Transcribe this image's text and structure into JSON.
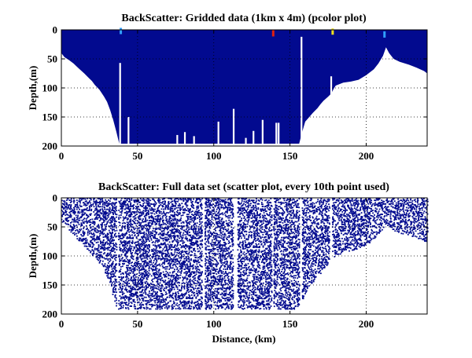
{
  "chart_data": [
    {
      "type": "heatmap",
      "title": "BackScatter: Gridded data (1km x 4m) (pcolor plot)",
      "xlabel": "",
      "ylabel": "Depth,(m)",
      "xlim": [
        0,
        240
      ],
      "ylim": [
        200,
        0
      ],
      "y_reversed": true,
      "xticks": [
        0,
        50,
        100,
        150,
        200
      ],
      "yticks": [
        0,
        50,
        100,
        150,
        200
      ],
      "grid": true,
      "colors": {
        "data": "#020a8f",
        "no_data": "#ffffff",
        "hot": "#e02010",
        "warm": "#f0e020",
        "cool": "#30a0ff"
      },
      "bottom_depth": [
        [
          0,
          40
        ],
        [
          2,
          47
        ],
        [
          5,
          52
        ],
        [
          8,
          58
        ],
        [
          10,
          63
        ],
        [
          12,
          68
        ],
        [
          15,
          75
        ],
        [
          18,
          83
        ],
        [
          20,
          88
        ],
        [
          22,
          95
        ],
        [
          25,
          103
        ],
        [
          28,
          115
        ],
        [
          30,
          124
        ],
        [
          32,
          138
        ],
        [
          34,
          155
        ],
        [
          36,
          175
        ],
        [
          38,
          196
        ],
        [
          156,
          196
        ],
        [
          158,
          176
        ],
        [
          160,
          158
        ],
        [
          162,
          152
        ],
        [
          165,
          143
        ],
        [
          168,
          135
        ],
        [
          170,
          128
        ],
        [
          172,
          122
        ],
        [
          175,
          115
        ],
        [
          177,
          110
        ],
        [
          179,
          100
        ],
        [
          180,
          96
        ],
        [
          185,
          91
        ],
        [
          190,
          89
        ],
        [
          195,
          86
        ],
        [
          200,
          78
        ],
        [
          205,
          68
        ],
        [
          208,
          58
        ],
        [
          211,
          45
        ],
        [
          213,
          30
        ],
        [
          215,
          40
        ],
        [
          218,
          50
        ],
        [
          222,
          55
        ],
        [
          228,
          60
        ],
        [
          233,
          65
        ],
        [
          238,
          71
        ],
        [
          240,
          75
        ]
      ],
      "gaps": [
        {
          "x": 38.5,
          "top": 57,
          "bottom": 196
        },
        {
          "x": 44,
          "top": 150,
          "bottom": 196
        },
        {
          "x": 76,
          "top": 181,
          "bottom": 196
        },
        {
          "x": 81,
          "top": 176,
          "bottom": 196
        },
        {
          "x": 87,
          "top": 183,
          "bottom": 196
        },
        {
          "x": 103,
          "top": 158,
          "bottom": 196
        },
        {
          "x": 113,
          "top": 136,
          "bottom": 196
        },
        {
          "x": 121,
          "top": 186,
          "bottom": 196
        },
        {
          "x": 126,
          "top": 174,
          "bottom": 196
        },
        {
          "x": 132,
          "top": 155,
          "bottom": 196
        },
        {
          "x": 141,
          "top": 160,
          "bottom": 196
        },
        {
          "x": 142.5,
          "top": 160,
          "bottom": 196
        },
        {
          "x": 157.5,
          "top": 12,
          "bottom": 196
        },
        {
          "x": 177,
          "top": 80,
          "bottom": 112
        }
      ],
      "hotspots": [
        {
          "x": 139,
          "y": 6,
          "color": "hot"
        },
        {
          "x": 178,
          "y": 3,
          "color": "warm"
        },
        {
          "x": 39,
          "y": 2,
          "color": "cool"
        },
        {
          "x": 212,
          "y": 8,
          "color": "cool"
        }
      ]
    },
    {
      "type": "scatter",
      "title": "BackScatter: Full data set (scatter plot, every 10th point used)",
      "xlabel": "Distance, (km)",
      "ylabel": "Depth,(m)",
      "xlim": [
        0,
        240
      ],
      "ylim": [
        200,
        0
      ],
      "y_reversed": true,
      "xticks": [
        0,
        50,
        100,
        150,
        200
      ],
      "yticks": [
        0,
        50,
        100,
        150,
        200
      ],
      "grid": true,
      "marker_color": "#020a8f",
      "sampling": "every 10th point",
      "density": 0.33,
      "seed": 7,
      "bottom_depth": [
        [
          0,
          40
        ],
        [
          5,
          55
        ],
        [
          10,
          70
        ],
        [
          15,
          83
        ],
        [
          20,
          97
        ],
        [
          25,
          112
        ],
        [
          30,
          135
        ],
        [
          33,
          160
        ],
        [
          36,
          190
        ],
        [
          156,
          190
        ],
        [
          160,
          162
        ],
        [
          165,
          145
        ],
        [
          170,
          128
        ],
        [
          175,
          112
        ],
        [
          180,
          97
        ],
        [
          190,
          90
        ],
        [
          200,
          80
        ],
        [
          205,
          70
        ],
        [
          210,
          55
        ],
        [
          213,
          45
        ],
        [
          216,
          52
        ],
        [
          220,
          58
        ],
        [
          230,
          65
        ],
        [
          240,
          75
        ]
      ],
      "gaps": [
        {
          "x0": 36,
          "x1": 37.2
        },
        {
          "x0": 92,
          "x1": 93.5
        },
        {
          "x0": 112.5,
          "x1": 115
        },
        {
          "x0": 137.5,
          "x1": 139
        },
        {
          "x0": 156,
          "x1": 157.5
        },
        {
          "x0": 176,
          "x1": 177.5
        }
      ]
    }
  ]
}
